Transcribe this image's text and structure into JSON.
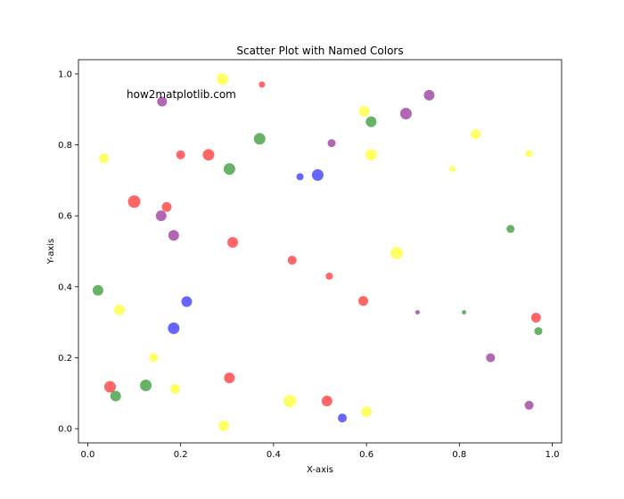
{
  "chart_data": {
    "type": "scatter",
    "title": "Scatter Plot with Named Colors",
    "xlabel": "X-axis",
    "ylabel": "Y-axis",
    "xlim": [
      -0.02,
      1.02
    ],
    "ylim": [
      -0.04,
      1.04
    ],
    "xticks": [
      "0.0",
      "0.2",
      "0.4",
      "0.6",
      "0.8",
      "1.0"
    ],
    "yticks": [
      "0.0",
      "0.2",
      "0.4",
      "0.6",
      "0.8",
      "1.0"
    ],
    "grid": false,
    "annotation": "how2matplotlib.com",
    "colors": {
      "red": "#ff0000",
      "green": "#008000",
      "blue": "#0000ff",
      "yellow": "#ffff00",
      "purple": "#800080"
    },
    "alpha": 0.6,
    "points": [
      {
        "x": 0.29,
        "y": 0.985,
        "color": "yellow",
        "size": 6.5
      },
      {
        "x": 0.375,
        "y": 0.97,
        "color": "red",
        "size": 3.5
      },
      {
        "x": 0.735,
        "y": 0.94,
        "color": "purple",
        "size": 6.0
      },
      {
        "x": 0.16,
        "y": 0.922,
        "color": "purple",
        "size": 5.5
      },
      {
        "x": 0.595,
        "y": 0.895,
        "color": "yellow",
        "size": 6.0
      },
      {
        "x": 0.685,
        "y": 0.888,
        "color": "purple",
        "size": 6.5
      },
      {
        "x": 0.61,
        "y": 0.865,
        "color": "green",
        "size": 6.0
      },
      {
        "x": 0.835,
        "y": 0.83,
        "color": "yellow",
        "size": 5.5
      },
      {
        "x": 0.37,
        "y": 0.817,
        "color": "green",
        "size": 6.5
      },
      {
        "x": 0.525,
        "y": 0.805,
        "color": "purple",
        "size": 4.5
      },
      {
        "x": 0.26,
        "y": 0.772,
        "color": "red",
        "size": 6.5
      },
      {
        "x": 0.2,
        "y": 0.772,
        "color": "red",
        "size": 5.0
      },
      {
        "x": 0.61,
        "y": 0.772,
        "color": "yellow",
        "size": 6.5
      },
      {
        "x": 0.95,
        "y": 0.775,
        "color": "yellow",
        "size": 4.0
      },
      {
        "x": 0.035,
        "y": 0.762,
        "color": "yellow",
        "size": 5.5
      },
      {
        "x": 0.305,
        "y": 0.732,
        "color": "green",
        "size": 6.5
      },
      {
        "x": 0.785,
        "y": 0.732,
        "color": "yellow",
        "size": 3.5
      },
      {
        "x": 0.495,
        "y": 0.715,
        "color": "blue",
        "size": 6.5
      },
      {
        "x": 0.457,
        "y": 0.71,
        "color": "blue",
        "size": 4.0
      },
      {
        "x": 0.1,
        "y": 0.64,
        "color": "red",
        "size": 7.0
      },
      {
        "x": 0.17,
        "y": 0.625,
        "color": "red",
        "size": 5.5
      },
      {
        "x": 0.158,
        "y": 0.6,
        "color": "purple",
        "size": 6.0
      },
      {
        "x": 0.91,
        "y": 0.563,
        "color": "green",
        "size": 4.5
      },
      {
        "x": 0.185,
        "y": 0.545,
        "color": "purple",
        "size": 6.0
      },
      {
        "x": 0.312,
        "y": 0.525,
        "color": "red",
        "size": 6.0
      },
      {
        "x": 0.665,
        "y": 0.495,
        "color": "yellow",
        "size": 7.0
      },
      {
        "x": 0.44,
        "y": 0.475,
        "color": "red",
        "size": 5.0
      },
      {
        "x": 0.52,
        "y": 0.43,
        "color": "red",
        "size": 4.0
      },
      {
        "x": 0.022,
        "y": 0.39,
        "color": "green",
        "size": 6.0
      },
      {
        "x": 0.213,
        "y": 0.358,
        "color": "blue",
        "size": 6.0
      },
      {
        "x": 0.593,
        "y": 0.36,
        "color": "red",
        "size": 5.5
      },
      {
        "x": 0.068,
        "y": 0.335,
        "color": "yellow",
        "size": 6.0
      },
      {
        "x": 0.71,
        "y": 0.328,
        "color": "purple",
        "size": 2.5
      },
      {
        "x": 0.81,
        "y": 0.328,
        "color": "green",
        "size": 2.5
      },
      {
        "x": 0.965,
        "y": 0.313,
        "color": "red",
        "size": 5.5
      },
      {
        "x": 0.185,
        "y": 0.283,
        "color": "blue",
        "size": 6.5
      },
      {
        "x": 0.97,
        "y": 0.275,
        "color": "green",
        "size": 4.5
      },
      {
        "x": 0.142,
        "y": 0.2,
        "color": "yellow",
        "size": 5.0
      },
      {
        "x": 0.867,
        "y": 0.2,
        "color": "purple",
        "size": 5.0
      },
      {
        "x": 0.305,
        "y": 0.143,
        "color": "red",
        "size": 6.0
      },
      {
        "x": 0.125,
        "y": 0.122,
        "color": "green",
        "size": 6.5
      },
      {
        "x": 0.048,
        "y": 0.118,
        "color": "red",
        "size": 6.5
      },
      {
        "x": 0.188,
        "y": 0.112,
        "color": "yellow",
        "size": 5.5
      },
      {
        "x": 0.06,
        "y": 0.092,
        "color": "green",
        "size": 6.0
      },
      {
        "x": 0.435,
        "y": 0.078,
        "color": "yellow",
        "size": 7.0
      },
      {
        "x": 0.515,
        "y": 0.078,
        "color": "red",
        "size": 6.0
      },
      {
        "x": 0.95,
        "y": 0.066,
        "color": "purple",
        "size": 5.0
      },
      {
        "x": 0.6,
        "y": 0.048,
        "color": "yellow",
        "size": 6.0
      },
      {
        "x": 0.548,
        "y": 0.03,
        "color": "blue",
        "size": 5.0
      },
      {
        "x": 0.293,
        "y": 0.008,
        "color": "yellow",
        "size": 6.0
      }
    ]
  }
}
